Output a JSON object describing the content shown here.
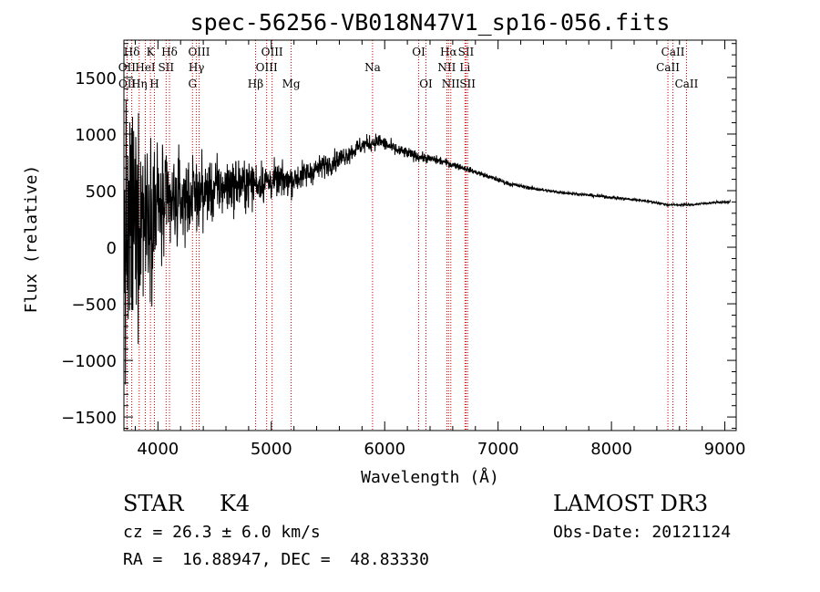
{
  "chart_data": {
    "type": "line",
    "title": "spec-56256-VB018N47V1_sp16-056.fits",
    "xlabel": "Wavelength (Å)",
    "ylabel": "Flux (relative)",
    "xlim": [
      3700,
      9100
    ],
    "ylim": [
      -1620,
      1830
    ],
    "x_ticks": [
      4000,
      5000,
      6000,
      7000,
      8000,
      9000
    ],
    "x_tick_labels": [
      "4000",
      "5000",
      "6000",
      "7000",
      "8000",
      "9000"
    ],
    "y_ticks": [
      -1500,
      -1000,
      -500,
      0,
      500,
      1000,
      1500
    ],
    "y_tick_labels": [
      "−1500",
      "−1000",
      "−500",
      "0",
      "500",
      "1000",
      "1500"
    ],
    "line_color": "#000000",
    "marker_color": "#cc0000",
    "spectrum_control_points": [
      [
        3700,
        0
      ],
      [
        3760,
        150
      ],
      [
        3850,
        320
      ],
      [
        3950,
        400
      ],
      [
        4050,
        330
      ],
      [
        4200,
        420
      ],
      [
        4400,
        480
      ],
      [
        4600,
        540
      ],
      [
        4800,
        560
      ],
      [
        5000,
        580
      ],
      [
        5200,
        600
      ],
      [
        5400,
        690
      ],
      [
        5600,
        780
      ],
      [
        5800,
        900
      ],
      [
        5950,
        940
      ],
      [
        6100,
        860
      ],
      [
        6300,
        800
      ],
      [
        6500,
        760
      ],
      [
        6700,
        700
      ],
      [
        6900,
        630
      ],
      [
        7100,
        560
      ],
      [
        7300,
        520
      ],
      [
        7500,
        490
      ],
      [
        7700,
        470
      ],
      [
        7900,
        450
      ],
      [
        8100,
        430
      ],
      [
        8300,
        410
      ],
      [
        8500,
        375
      ],
      [
        8700,
        375
      ],
      [
        8900,
        395
      ],
      [
        9050,
        400
      ]
    ],
    "noise_control_points": [
      [
        3700,
        1400
      ],
      [
        3800,
        1100
      ],
      [
        3900,
        800
      ],
      [
        4000,
        650
      ],
      [
        4100,
        520
      ],
      [
        4250,
        380
      ],
      [
        4500,
        300
      ],
      [
        4800,
        230
      ],
      [
        5100,
        160
      ],
      [
        5500,
        110
      ],
      [
        5900,
        80
      ],
      [
        6300,
        50
      ],
      [
        6800,
        25
      ],
      [
        7500,
        15
      ],
      [
        9050,
        12
      ]
    ],
    "spectral_lines": [
      {
        "label": "Hδ",
        "wavelength": 3769,
        "row": 0
      },
      {
        "label": "OII",
        "wavelength": 3727,
        "row": 1
      },
      {
        "label": "OII",
        "wavelength": 3729,
        "row": 2
      },
      {
        "label": "K",
        "wavelength": 3934,
        "row": 0
      },
      {
        "label": "HeI",
        "wavelength": 3889,
        "row": 1
      },
      {
        "label": "Hη",
        "wavelength": 3835,
        "row": 2
      },
      {
        "label": "Hδ",
        "wavelength": 4102,
        "row": 0
      },
      {
        "label": "SII",
        "wavelength": 4072,
        "row": 1
      },
      {
        "label": "H",
        "wavelength": 3969,
        "row": 2
      },
      {
        "label": "OIII",
        "wavelength": 4363,
        "row": 0
      },
      {
        "label": "Hγ",
        "wavelength": 4340,
        "row": 1
      },
      {
        "label": "G",
        "wavelength": 4305,
        "row": 2
      },
      {
        "label": "OIII",
        "wavelength": 5007,
        "row": 0
      },
      {
        "label": "OIII",
        "wavelength": 4959,
        "row": 1
      },
      {
        "label": "Hβ",
        "wavelength": 4861,
        "row": 2
      },
      {
        "label": "Mg",
        "wavelength": 5175,
        "row": 2
      },
      {
        "label": "Na",
        "wavelength": 5893,
        "row": 1
      },
      {
        "label": "OI",
        "wavelength": 6300,
        "row": 0
      },
      {
        "label": "OI",
        "wavelength": 6364,
        "row": 2
      },
      {
        "label": "Hα",
        "wavelength": 6563,
        "row": 0
      },
      {
        "label": "NII",
        "wavelength": 6548,
        "row": 1
      },
      {
        "label": "NII",
        "wavelength": 6583,
        "row": 2
      },
      {
        "label": "SII",
        "wavelength": 6717,
        "row": 0
      },
      {
        "label": "Li",
        "wavelength": 6708,
        "row": 1
      },
      {
        "label": "SII",
        "wavelength": 6731,
        "row": 2
      },
      {
        "label": "CaII",
        "wavelength": 8542,
        "row": 0
      },
      {
        "label": "CaII",
        "wavelength": 8498,
        "row": 1
      },
      {
        "label": "CaII",
        "wavelength": 8662,
        "row": 2
      }
    ]
  },
  "info": {
    "object_class": "STAR",
    "subclass": "K4",
    "survey": "LAMOST DR3",
    "cz": "cz = 26.3 ± 6.0 km/s",
    "obs_date": "Obs-Date: 20121124",
    "ra_dec": "RA =  16.88947, DEC =  48.83330"
  }
}
